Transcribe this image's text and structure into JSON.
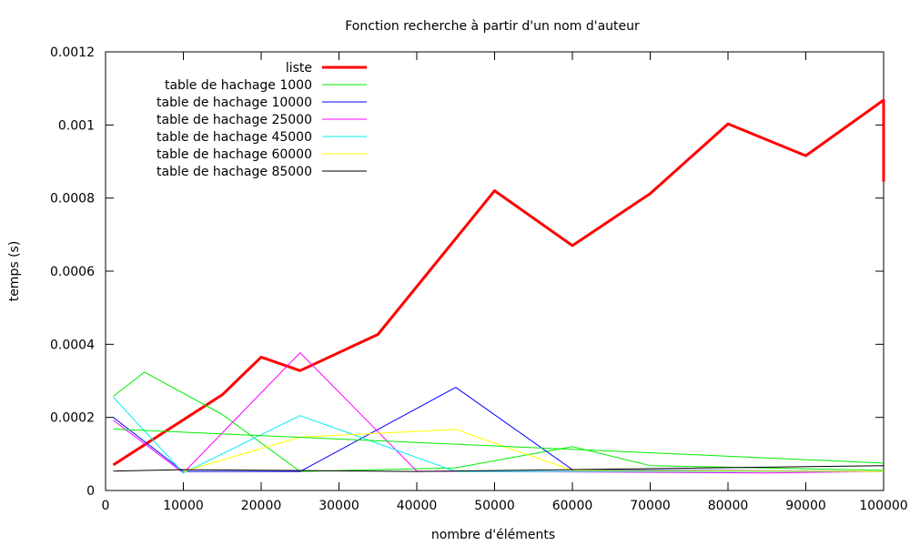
{
  "chart_data": {
    "type": "line",
    "title": "Fonction recherche à partir d'un nom d'auteur",
    "xlabel": "nombre d'éléments",
    "ylabel": "temps (s)",
    "xlim": [
      0,
      100000
    ],
    "ylim": [
      0,
      0.0012
    ],
    "xticks": [
      0,
      10000,
      20000,
      30000,
      40000,
      50000,
      60000,
      70000,
      80000,
      90000,
      100000
    ],
    "xtick_labels": [
      "0",
      "10000",
      "20000",
      "30000",
      "40000",
      "50000",
      "60000",
      "70000",
      "80000",
      "90000",
      "100000"
    ],
    "yticks": [
      0,
      0.0002,
      0.0004,
      0.0006,
      0.0008,
      0.001,
      0.0012
    ],
    "ytick_labels": [
      "0",
      "0.0002",
      "0.0004",
      "0.0006",
      "0.0008",
      "0.001",
      "0.0012"
    ],
    "grid": false,
    "legend_position": "top-left",
    "series": [
      {
        "name": "liste",
        "color": "#ff0000",
        "emphasis": true,
        "points": [
          [
            1000,
            7e-05
          ],
          [
            15000,
            0.000262
          ],
          [
            20000,
            0.000365
          ],
          [
            25000,
            0.000328
          ],
          [
            35000,
            0.000427
          ],
          [
            50000,
            0.00082
          ],
          [
            60000,
            0.00067
          ],
          [
            70000,
            0.000812
          ],
          [
            80000,
            0.001003
          ],
          [
            90000,
            0.000916
          ],
          [
            100000,
            0.001068
          ],
          [
            100000,
            0.000845
          ]
        ]
      },
      {
        "name": "table de hachage 1000",
        "color": "#00ee00",
        "points": [
          [
            1000,
            0.000258
          ],
          [
            5000,
            0.000324
          ],
          [
            15000,
            0.000208
          ],
          [
            25000,
            5.2e-05
          ],
          [
            45000,
            6.2e-05
          ],
          [
            60000,
            0.00012
          ],
          [
            70000,
            6.8e-05
          ],
          [
            100000,
            5.5e-05
          ]
        ]
      },
      {
        "name": "table de hachage 10000",
        "color": "#0000ff",
        "points": [
          [
            1000,
            0.0002
          ],
          [
            10000,
            5.2e-05
          ],
          [
            25000,
            5.2e-05
          ],
          [
            45000,
            0.000282
          ],
          [
            60000,
            5.7e-05
          ],
          [
            100000,
            5.2e-05
          ]
        ]
      },
      {
        "name": "table de hachage 25000",
        "color": "#ff00ff",
        "points": [
          [
            1000,
            0.000192
          ],
          [
            10000,
            4.8e-05
          ],
          [
            25000,
            0.000377
          ],
          [
            40000,
            5.3e-05
          ],
          [
            85000,
            4.8e-05
          ],
          [
            100000,
            5.2e-05
          ]
        ]
      },
      {
        "name": "table de hachage 45000",
        "color": "#00eeee",
        "points": [
          [
            1000,
            0.000255
          ],
          [
            10000,
            4.8e-05
          ],
          [
            25000,
            0.000205
          ],
          [
            45000,
            5.2e-05
          ],
          [
            100000,
            5.2e-05
          ]
        ]
      },
      {
        "name": "table de hachage 60000",
        "color": "#ffff00",
        "points": [
          [
            10000,
            5.2e-05
          ],
          [
            25000,
            0.000146
          ],
          [
            45000,
            0.000167
          ],
          [
            60000,
            5.5e-05
          ],
          [
            100000,
            5.2e-05
          ]
        ]
      },
      {
        "name": "table de hachage 85000",
        "color": "#000000",
        "points": [
          [
            1000,
            5.3e-05
          ],
          [
            10000,
            5.7e-05
          ],
          [
            40000,
            5.2e-05
          ],
          [
            60000,
            5.7e-05
          ],
          [
            100000,
            6.8e-05
          ]
        ]
      },
      {
        "color": "#00ee00",
        "points": [
          [
            1000,
            0.000168
          ],
          [
            100000,
            7.5e-05
          ]
        ]
      }
    ]
  }
}
